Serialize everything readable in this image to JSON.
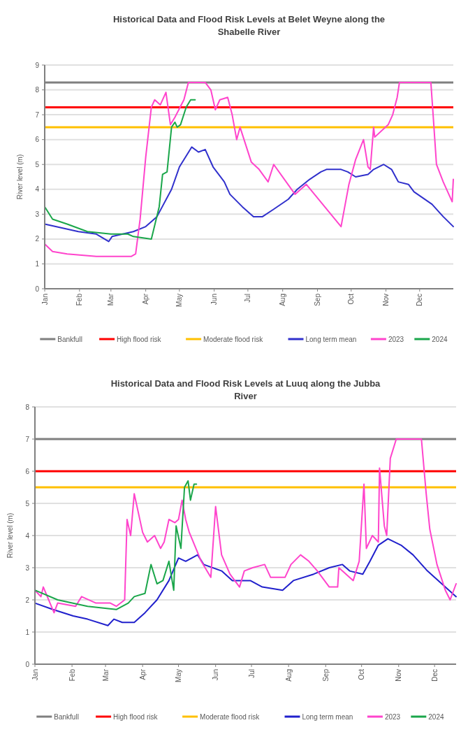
{
  "chart_data": [
    {
      "type": "line",
      "title": "Historical Data and Flood Risk Levels at Belet Weyne along the Shabelle River",
      "ylabel": "River level (m)",
      "xlim": [
        "--01-01",
        "--12-31"
      ],
      "xticks": [
        {
          "value": "--01-01",
          "label": "Jan"
        },
        {
          "value": "--02-01",
          "label": "Feb"
        },
        {
          "value": "--03-01",
          "label": "Mar"
        },
        {
          "value": "--04-01",
          "label": "Apr"
        },
        {
          "value": "--05-01",
          "label": "May"
        },
        {
          "value": "--06-01",
          "label": "Jun"
        },
        {
          "value": "--07-01",
          "label": "Jul"
        },
        {
          "value": "--08-01",
          "label": "Aug"
        },
        {
          "value": "--09-01",
          "label": "Sep"
        },
        {
          "value": "--10-01",
          "label": "Oct"
        },
        {
          "value": "--11-01",
          "label": "Nov"
        },
        {
          "value": "--12-01",
          "label": "Dec"
        }
      ],
      "ylim": [
        0,
        9
      ],
      "yticks": [
        0,
        1,
        2,
        3,
        4,
        5,
        6,
        7,
        8,
        9
      ],
      "grid": "y",
      "legend": "bottom",
      "marker": "none",
      "line_style": "solid",
      "ref_lines": [
        {
          "axis": "y",
          "value": 8.3,
          "label": "Bankfull",
          "color": "#7f7f7f"
        },
        {
          "axis": "y",
          "value": 7.3,
          "label": "High flood risk",
          "color": "#ff0000"
        },
        {
          "axis": "y",
          "value": 6.5,
          "label": "Moderate flood risk",
          "color": "#ffc000"
        }
      ],
      "series": [
        {
          "name": "Long term mean",
          "color": "#3030cc",
          "x": [
            "--01-01",
            "--01-31",
            "--02-16",
            "--02-27",
            "--03-02",
            "--03-21",
            "--04-01",
            "--04-11",
            "--04-24",
            "--05-01",
            "--05-12",
            "--05-18",
            "--05-24",
            "--05-31",
            "--06-10",
            "--06-15",
            "--06-26",
            "--07-06",
            "--07-14",
            "--07-24",
            "--08-06",
            "--08-14",
            "--08-25",
            "--09-04",
            "--09-09",
            "--09-22",
            "--09-28",
            "--10-05",
            "--10-16",
            "--10-21",
            "--10-30",
            "--11-06",
            "--11-12",
            "--11-21",
            "--11-26",
            "--12-12",
            "--12-22",
            "--12-31"
          ],
          "values": [
            2.6,
            2.3,
            2.2,
            1.9,
            2.1,
            2.3,
            2.5,
            2.9,
            4.0,
            4.9,
            5.7,
            5.5,
            5.6,
            4.9,
            4.3,
            3.8,
            3.3,
            2.9,
            2.9,
            3.2,
            3.6,
            4.0,
            4.4,
            4.7,
            4.8,
            4.8,
            4.7,
            4.5,
            4.6,
            4.8,
            5.0,
            4.8,
            4.3,
            4.2,
            3.9,
            3.4,
            2.9,
            2.5
          ]
        },
        {
          "name": "2023",
          "color": "#ff44cc",
          "x": [
            "--01-01",
            "--01-08",
            "--01-21",
            "--02-16",
            "--03-19",
            "--03-23",
            "--03-27",
            "--04-01",
            "--04-06",
            "--04-09",
            "--04-14",
            "--04-19",
            "--04-23",
            "--04-27",
            "--05-05",
            "--05-09",
            "--05-24",
            "--05-29",
            "--06-02",
            "--06-06",
            "--06-13",
            "--06-17",
            "--06-21",
            "--06-24",
            "--07-04",
            "--07-11",
            "--07-19",
            "--07-24",
            "--08-12",
            "--08-22",
            "--09-22",
            "--09-29",
            "--10-05",
            "--10-12",
            "--10-16",
            "--10-18",
            "--10-21",
            "--10-22",
            "--11-03",
            "--11-07",
            "--11-11",
            "--11-13",
            "--12-11",
            "--12-13",
            "--12-16",
            "--12-22",
            "--12-30",
            "--12-31"
          ],
          "values": [
            1.8,
            1.5,
            1.4,
            1.3,
            1.3,
            1.4,
            2.8,
            5.3,
            7.3,
            7.6,
            7.4,
            7.9,
            6.6,
            6.9,
            7.6,
            8.3,
            8.3,
            8.0,
            7.2,
            7.6,
            7.7,
            7.0,
            6.0,
            6.5,
            5.1,
            4.8,
            4.3,
            5.0,
            3.8,
            4.2,
            2.5,
            4.2,
            5.2,
            6.0,
            4.9,
            4.8,
            6.5,
            6.1,
            6.6,
            7.0,
            7.7,
            8.3,
            8.3,
            7.0,
            5.0,
            4.3,
            3.5,
            4.4
          ]
        },
        {
          "name": "2024",
          "color": "#1aa64a",
          "x": [
            "--01-01",
            "--01-08",
            "--01-21",
            "--02-08",
            "--03-01",
            "--03-16",
            "--03-21",
            "--04-06",
            "--04-13",
            "--04-16",
            "--04-20",
            "--04-24",
            "--04-27",
            "--04-29",
            "--05-02",
            "--05-07",
            "--05-11",
            "--05-15"
          ],
          "values": [
            3.3,
            2.8,
            2.6,
            2.3,
            2.2,
            2.2,
            2.1,
            2.0,
            3.3,
            4.6,
            4.7,
            6.5,
            6.7,
            6.5,
            6.6,
            7.3,
            7.6,
            7.6
          ]
        }
      ]
    },
    {
      "type": "line",
      "title": "Historical Data and Flood Risk Levels at Luuq along the Jubba River",
      "ylabel": "River level (m)",
      "xlim": [
        "--01-01",
        "--12-19"
      ],
      "xticks": [
        {
          "value": "--01-01",
          "label": "Jan"
        },
        {
          "value": "--02-01",
          "label": "Feb"
        },
        {
          "value": "--03-01",
          "label": "Mar"
        },
        {
          "value": "--04-01",
          "label": "Apr"
        },
        {
          "value": "--05-01",
          "label": "May"
        },
        {
          "value": "--06-01",
          "label": "Jun"
        },
        {
          "value": "--07-01",
          "label": "Jul"
        },
        {
          "value": "--08-01",
          "label": "Aug"
        },
        {
          "value": "--09-01",
          "label": "Sep"
        },
        {
          "value": "--10-01",
          "label": "Oct"
        },
        {
          "value": "--11-01",
          "label": "Nov"
        },
        {
          "value": "--12-01",
          "label": "Dec"
        }
      ],
      "ylim": [
        0,
        8
      ],
      "yticks": [
        0,
        1,
        2,
        3,
        4,
        5,
        6,
        7,
        8
      ],
      "grid": "y",
      "legend": "bottom",
      "marker": "none",
      "line_style": "solid",
      "ref_lines": [
        {
          "axis": "y",
          "value": 7,
          "label": "Bankfull",
          "color": "#7f7f7f"
        },
        {
          "axis": "y",
          "value": 6,
          "label": "High flood risk",
          "color": "#ff0000"
        },
        {
          "axis": "y",
          "value": 5.5,
          "label": "Moderate flood risk",
          "color": "#ffc000"
        }
      ],
      "series": [
        {
          "name": "Long term mean",
          "color": "#2020cc",
          "x": [
            "--01-01",
            "--01-16",
            "--02-02",
            "--02-14",
            "--03-03",
            "--03-08",
            "--03-15",
            "--03-25",
            "--04-03",
            "--04-13",
            "--04-23",
            "--05-01",
            "--05-07",
            "--05-17",
            "--05-22",
            "--06-06",
            "--06-15",
            "--06-30",
            "--07-10",
            "--07-27",
            "--08-05",
            "--08-22",
            "--09-04",
            "--09-15",
            "--09-21",
            "--10-02",
            "--10-08",
            "--10-15",
            "--10-23",
            "--11-03",
            "--11-13",
            "--11-25",
            "--12-07",
            "--12-19"
          ],
          "values": [
            1.9,
            1.7,
            1.5,
            1.4,
            1.2,
            1.4,
            1.3,
            1.3,
            1.6,
            2.0,
            2.6,
            3.3,
            3.2,
            3.4,
            3.1,
            2.9,
            2.6,
            2.6,
            2.4,
            2.3,
            2.6,
            2.8,
            3.0,
            3.1,
            2.9,
            2.8,
            3.2,
            3.7,
            3.9,
            3.7,
            3.4,
            2.9,
            2.5,
            2.1
          ]
        },
        {
          "name": "2023",
          "color": "#ff44cc",
          "x": [
            "--01-01",
            "--01-06",
            "--01-08",
            "--01-17",
            "--01-20",
            "--02-04",
            "--02-09",
            "--02-21",
            "--03-05",
            "--03-10",
            "--03-17",
            "--03-19",
            "--03-22",
            "--03-25",
            "--04-01",
            "--04-05",
            "--04-11",
            "--04-16",
            "--04-19",
            "--04-23",
            "--04-28",
            "--05-01",
            "--05-04",
            "--05-07",
            "--05-10",
            "--05-20",
            "--05-28",
            "--06-01",
            "--06-06",
            "--06-13",
            "--06-21",
            "--06-25",
            "--07-02",
            "--07-12",
            "--07-17",
            "--07-29",
            "--08-03",
            "--08-11",
            "--08-18",
            "--08-25",
            "--09-04",
            "--09-11",
            "--09-12",
            "--09-24",
            "--09-29",
            "--10-03",
            "--10-05",
            "--10-10",
            "--10-15",
            "--10-16",
            "--10-20",
            "--10-22",
            "--10-25",
            "--10-30",
            "--11-20",
            "--11-24",
            "--11-27",
            "--12-03",
            "--12-10",
            "--12-14",
            "--12-19"
          ],
          "values": [
            2.3,
            2.1,
            2.4,
            1.6,
            1.9,
            1.8,
            2.1,
            1.9,
            1.9,
            1.8,
            2.0,
            4.5,
            4.0,
            5.3,
            4.1,
            3.8,
            4.0,
            3.6,
            3.8,
            4.5,
            4.4,
            4.5,
            5.1,
            4.5,
            4.1,
            3.2,
            2.7,
            4.9,
            3.4,
            2.8,
            2.4,
            2.9,
            3.0,
            3.1,
            2.7,
            2.7,
            3.1,
            3.4,
            3.2,
            2.9,
            2.4,
            2.4,
            3.0,
            2.6,
            3.2,
            5.6,
            3.6,
            4.0,
            3.8,
            6.1,
            4.3,
            4.0,
            6.4,
            7.0,
            7.0,
            5.3,
            4.2,
            3.1,
            2.3,
            2.0,
            2.5
          ]
        },
        {
          "name": "2024",
          "color": "#1aa64a",
          "x": [
            "--01-01",
            "--01-20",
            "--02-14",
            "--03-10",
            "--03-20",
            "--03-25",
            "--04-03",
            "--04-08",
            "--04-13",
            "--04-18",
            "--04-23",
            "--04-27",
            "--04-29",
            "--05-03",
            "--05-06",
            "--05-09",
            "--05-11",
            "--05-14",
            "--05-16"
          ],
          "values": [
            2.3,
            2.0,
            1.8,
            1.7,
            1.9,
            2.1,
            2.2,
            3.1,
            2.5,
            2.6,
            3.2,
            2.3,
            4.3,
            3.6,
            5.5,
            5.7,
            5.1,
            5.6,
            5.6
          ]
        }
      ]
    }
  ]
}
